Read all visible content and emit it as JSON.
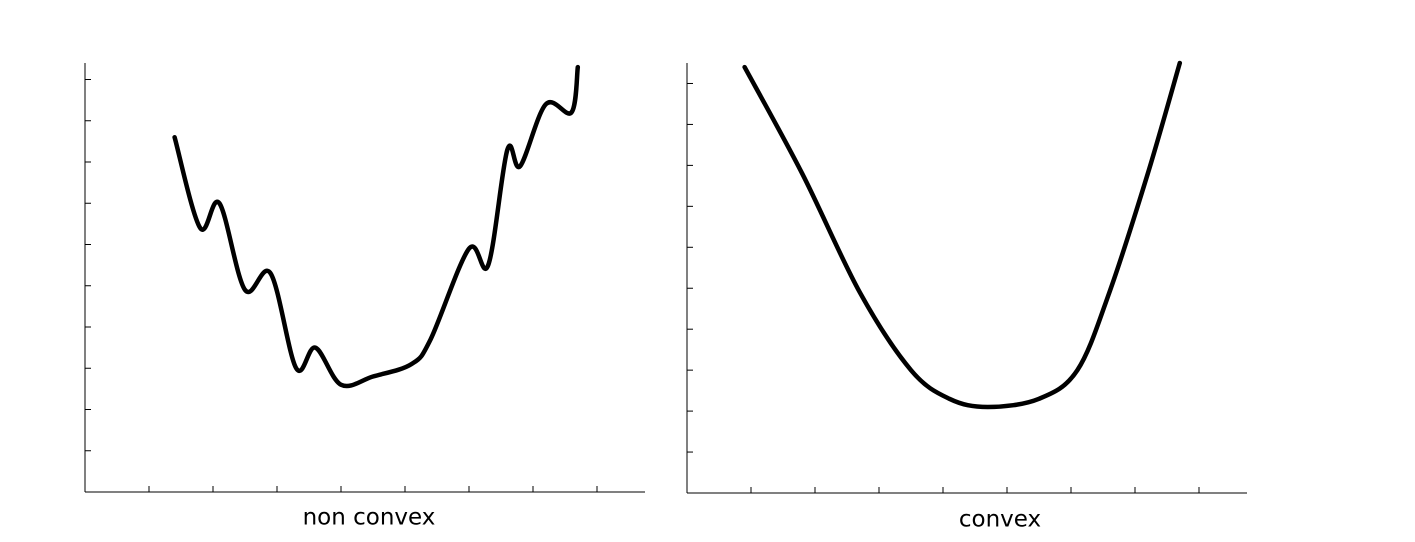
{
  "chart_data": [
    {
      "type": "line",
      "title": "non convex",
      "x": [
        1.4,
        1.8,
        2.1,
        2.5,
        2.9,
        3.3,
        3.6,
        4.0,
        4.5,
        5.1,
        5.4,
        6.0,
        6.3,
        6.6,
        6.8,
        7.2,
        7.6,
        7.7
      ],
      "values": [
        8.6,
        6.4,
        7.0,
        4.9,
        5.3,
        3.0,
        3.5,
        2.6,
        2.8,
        3.1,
        3.7,
        5.9,
        5.5,
        8.3,
        7.9,
        9.4,
        9.2,
        10.3
      ],
      "color": "#000000",
      "xlim": [
        0,
        8.75
      ],
      "ylim": [
        0,
        10.4
      ],
      "xticks": [
        1,
        2,
        3,
        4,
        5,
        6,
        7,
        8
      ],
      "yticks": [
        1,
        2,
        3,
        4,
        5,
        6,
        7,
        8,
        9,
        10
      ]
    },
    {
      "type": "line",
      "title": "convex",
      "x": [
        0.9,
        1.8,
        2.7,
        3.5,
        4.1,
        4.7,
        5.5,
        6.1,
        6.6,
        7.2,
        7.7
      ],
      "values": [
        10.4,
        7.8,
        4.9,
        3.0,
        2.3,
        2.1,
        2.3,
        3.0,
        4.9,
        7.8,
        10.5
      ],
      "color": "#000000",
      "xlim": [
        0,
        8.75
      ],
      "ylim": [
        0,
        10.5
      ],
      "xticks": [
        1,
        2,
        3,
        4,
        5,
        6,
        7,
        8
      ],
      "yticks": [
        1,
        2,
        3,
        4,
        5,
        6,
        7,
        8,
        9,
        10
      ]
    }
  ]
}
